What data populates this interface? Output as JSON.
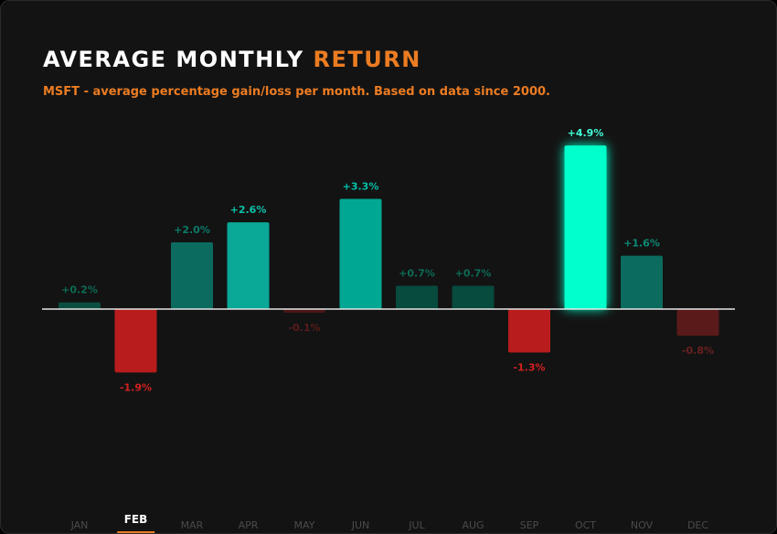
{
  "title": {
    "main": "AVERAGE MONTHLY",
    "accent": "RETURN"
  },
  "subtitle": "MSFT - average percentage gain/loss per month. Based on data since 2000.",
  "colors": {
    "accent": "#ec7c22",
    "background": "#131313"
  },
  "selected_month": "FEB",
  "chart_data": {
    "type": "bar",
    "categories": [
      "JAN",
      "FEB",
      "MAR",
      "APR",
      "MAY",
      "JUN",
      "JUL",
      "AUG",
      "SEP",
      "OCT",
      "NOV",
      "DEC"
    ],
    "values": [
      0.2,
      -1.9,
      2.0,
      2.6,
      -0.1,
      3.3,
      0.7,
      0.7,
      -1.3,
      4.9,
      1.6,
      -0.8
    ],
    "labels": [
      "+0.2%",
      "-1.9%",
      "+2.0%",
      "+2.6%",
      "-0.1%",
      "+3.3%",
      "+0.7%",
      "+0.7%",
      "-1.3%",
      "+4.9%",
      "+1.6%",
      "-0.8%"
    ],
    "bar_colors": [
      "#0b4d40",
      "#b81c1c",
      "#0b6b5f",
      "#0aa897",
      "#4a1616",
      "#00a894",
      "#074a3e",
      "#074a3e",
      "#b81c1c",
      "#00ffcc",
      "#0b6b5f",
      "#5a1a1a"
    ],
    "label_colors": [
      "#0b6b55",
      "#d22020",
      "#0b7a68",
      "#0cc0aa",
      "#5a1c1c",
      "#00c0a8",
      "#0b6b55",
      "#0b6b55",
      "#d22020",
      "#3fffd8",
      "#0b8a74",
      "#6a2020"
    ],
    "ylim": [
      -2.0,
      5.0
    ],
    "grid": false,
    "legend": "none",
    "xlabel": "",
    "ylabel": ""
  }
}
